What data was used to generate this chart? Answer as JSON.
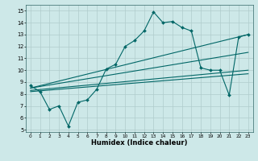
{
  "xlabel": "Humidex (Indice chaleur)",
  "ylabel": "",
  "bg_color": "#cde8e8",
  "grid_color": "#b0cccc",
  "line_color": "#006666",
  "xlim": [
    -0.5,
    23.5
  ],
  "ylim": [
    4.8,
    15.5
  ],
  "yticks": [
    5,
    6,
    7,
    8,
    9,
    10,
    11,
    12,
    13,
    14,
    15
  ],
  "xticks": [
    0,
    1,
    2,
    3,
    4,
    5,
    6,
    7,
    8,
    9,
    10,
    11,
    12,
    13,
    14,
    15,
    16,
    17,
    18,
    19,
    20,
    21,
    22,
    23
  ],
  "line1_x": [
    0,
    1,
    2,
    3,
    4,
    5,
    6,
    7,
    8,
    9,
    10,
    11,
    12,
    13,
    14,
    15,
    16,
    17,
    18,
    19,
    20,
    21,
    22,
    23
  ],
  "line1_y": [
    8.7,
    8.2,
    6.7,
    7.0,
    5.3,
    7.3,
    7.5,
    8.4,
    10.1,
    10.5,
    12.0,
    12.5,
    13.3,
    14.9,
    14.0,
    14.1,
    13.6,
    13.3,
    10.2,
    10.0,
    10.0,
    7.9,
    12.8,
    13.0
  ],
  "line2_x": [
    0,
    23
  ],
  "line2_y": [
    8.5,
    13.0
  ],
  "line3_x": [
    0,
    23
  ],
  "line3_y": [
    8.5,
    11.5
  ],
  "line4_x": [
    0,
    23
  ],
  "line4_y": [
    8.3,
    10.0
  ],
  "line5_x": [
    0,
    23
  ],
  "line5_y": [
    8.2,
    9.7
  ]
}
